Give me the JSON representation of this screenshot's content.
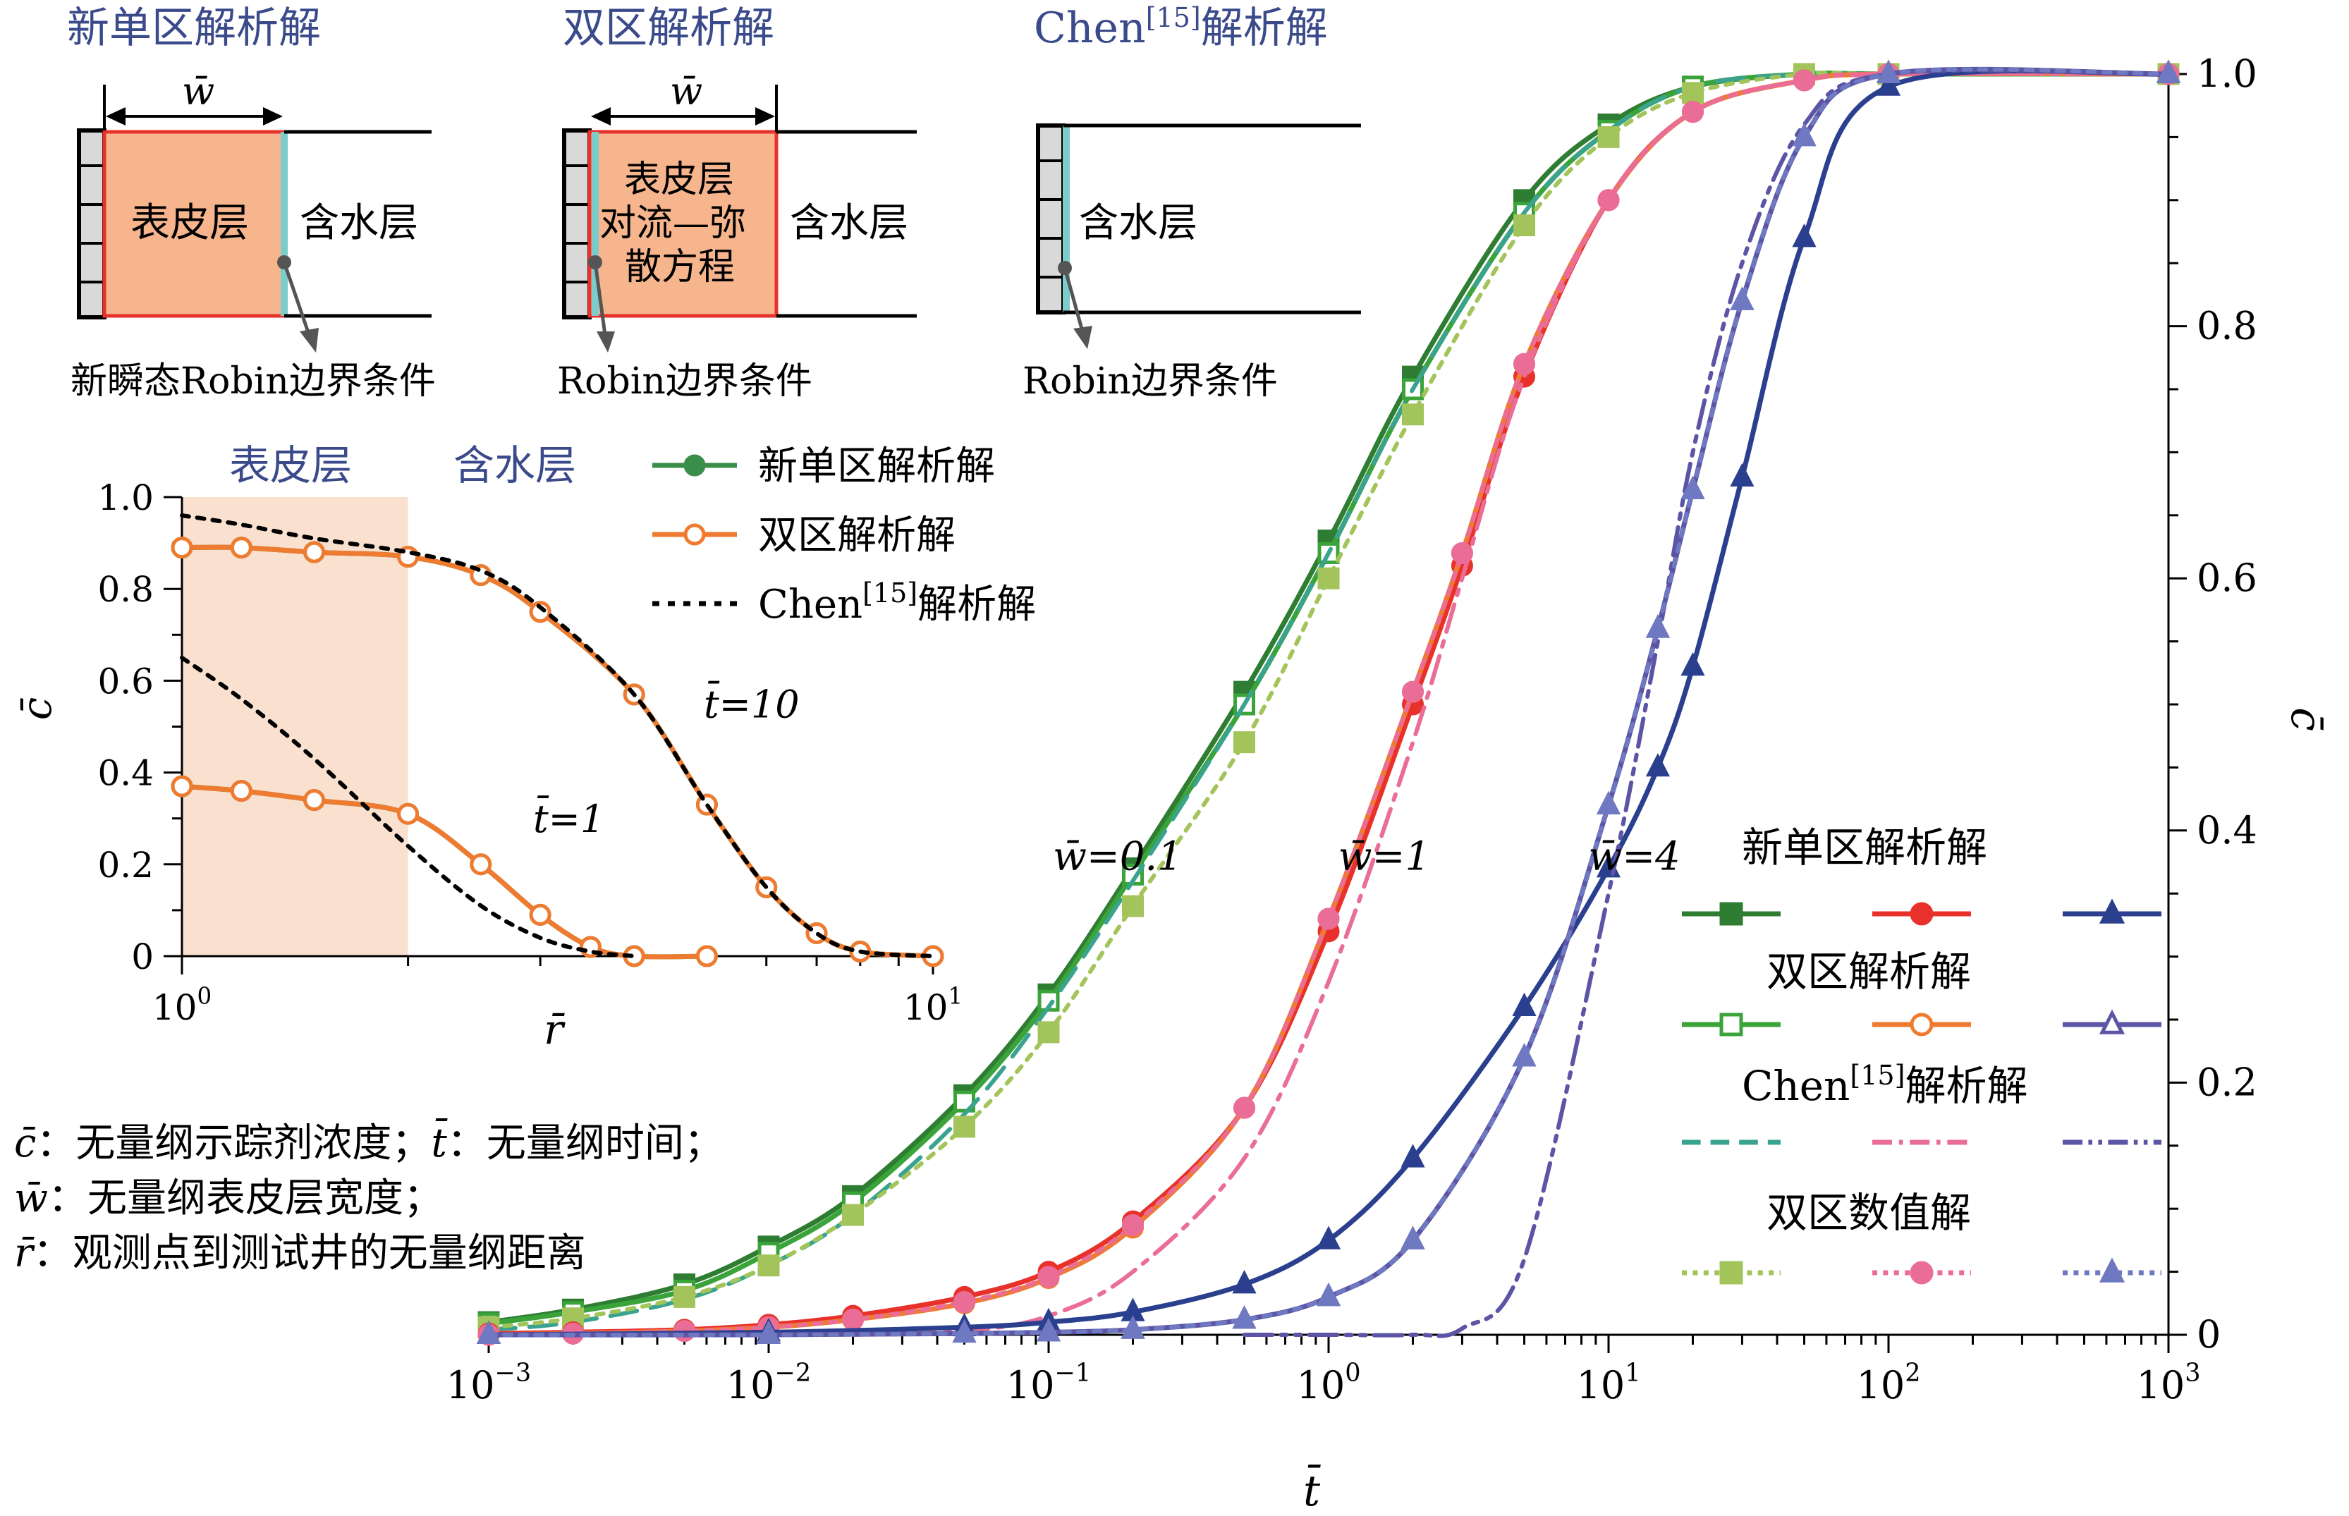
{
  "schematics": {
    "new_single": {
      "title": "新单区解析解",
      "width_symbol": "w̄",
      "skin_label": "表皮层",
      "aquifer_label": "含水层",
      "boundary_label": "新瞬态Robin边界条件"
    },
    "two_zone": {
      "title": "双区解析解",
      "width_symbol": "w̄",
      "skin_label_lines": [
        "表皮层",
        "对流—弥",
        "散方程"
      ],
      "aquifer_label": "含水层",
      "boundary_label": "Robin边界条件"
    },
    "chen": {
      "title_main": "Chen",
      "title_ref": "[15]",
      "title_rest": "解析解",
      "aquifer_label": "含水层",
      "boundary_label": "Robin边界条件"
    }
  },
  "main_legend": {
    "groups": [
      {
        "title": "新单区解析解"
      },
      {
        "title": "双区解析解"
      },
      {
        "title_main": "Chen",
        "title_ref": "[15]",
        "title_rest": "解析解"
      },
      {
        "title": "双区数值解"
      }
    ]
  },
  "inset_legend": {
    "items": [
      {
        "label": "新单区解析解"
      },
      {
        "label": "双区解析解"
      },
      {
        "label_main": "Chen",
        "label_ref": "[15]",
        "label_rest": "解析解"
      }
    ]
  },
  "inset_zone_labels": {
    "skin": "表皮层",
    "aquifer": "含水层"
  },
  "notes": [
    {
      "sym": "c̄",
      "text": "：无量纲示踪剂浓度；",
      "sym2": "t̄",
      "text2": "：无量纲时间；"
    },
    {
      "sym": "w̄",
      "text": "：无量纲表皮层宽度；"
    },
    {
      "sym": "r̄",
      "text": "：观测点到测试井的无量纲距离"
    }
  ],
  "colors": {
    "green_dark": "#2e7d32",
    "green": "#3aa33a",
    "green_light": "#a2c45a",
    "red": "#e8312a",
    "orange": "#ee7b30",
    "pink": "#ea6d98",
    "blue": "#2b3f8f",
    "purple": "#5c55a5",
    "teal": "#3aa38f",
    "skin_fill": "#f6b58d",
    "well_line": "#7dcccc",
    "title_blue": "#3a4a8a"
  },
  "chart_data": [
    {
      "type": "line",
      "xlabel": "t̄",
      "ylabel": "c̄",
      "xscale": "log",
      "xlim": [
        0.001,
        1000
      ],
      "ylim": [
        0,
        1
      ],
      "x_tick_labels": [
        "10^-3",
        "10^-2",
        "10^-1",
        "10^0",
        "10^1",
        "10^2",
        "10^3"
      ],
      "y_tick_labels": [
        "0",
        "0.2",
        "0.4",
        "0.6",
        "0.8",
        "1.0"
      ],
      "y_axis_side": "right",
      "annotations": [
        "w̄=0.1",
        "w̄=1",
        "w̄=4"
      ],
      "series": [
        {
          "name": "新单区解析解",
          "group": "w̄=0.1",
          "style": "solid",
          "marker": "filled-square",
          "color": "#2e7d32",
          "x": [
            0.001,
            0.002,
            0.005,
            0.01,
            0.02,
            0.05,
            0.1,
            0.2,
            0.5,
            1,
            2,
            5,
            10,
            20,
            50,
            100,
            1000
          ],
          "y": [
            0.01,
            0.02,
            0.04,
            0.07,
            0.11,
            0.19,
            0.27,
            0.37,
            0.51,
            0.63,
            0.76,
            0.9,
            0.96,
            0.99,
            1.0,
            1.0,
            1.0
          ]
        },
        {
          "name": "双区解析解",
          "group": "w̄=0.1",
          "style": "solid",
          "marker": "open-square",
          "color": "#3aa33a",
          "x": [
            0.001,
            0.002,
            0.005,
            0.01,
            0.02,
            0.05,
            0.1,
            0.2,
            0.5,
            1,
            2,
            5,
            10,
            20,
            50,
            100,
            1000
          ],
          "y": [
            0.009,
            0.018,
            0.035,
            0.065,
            0.105,
            0.185,
            0.265,
            0.365,
            0.5,
            0.62,
            0.75,
            0.89,
            0.955,
            0.99,
            1.0,
            1.0,
            1.0
          ]
        },
        {
          "name": "Chen[15]解析解",
          "group": "w̄=0.1",
          "style": "dash",
          "marker": "none",
          "color": "#3aa38f",
          "x": [
            0.001,
            0.002,
            0.005,
            0.01,
            0.02,
            0.05,
            0.1,
            0.2,
            0.5,
            1,
            2,
            5,
            10,
            20,
            50,
            100,
            1000
          ],
          "y": [
            0.004,
            0.01,
            0.028,
            0.055,
            0.095,
            0.175,
            0.26,
            0.36,
            0.5,
            0.62,
            0.75,
            0.89,
            0.955,
            0.99,
            1.0,
            1.0,
            1.0
          ]
        },
        {
          "name": "双区数值解",
          "group": "w̄=0.1",
          "style": "dot",
          "marker": "filled-square",
          "color": "#a2c45a",
          "x": [
            0.001,
            0.002,
            0.005,
            0.01,
            0.02,
            0.05,
            0.1,
            0.2,
            0.5,
            1,
            2,
            5,
            10,
            20,
            50,
            100,
            1000
          ],
          "y": [
            0.006,
            0.013,
            0.03,
            0.055,
            0.095,
            0.165,
            0.24,
            0.34,
            0.47,
            0.6,
            0.73,
            0.88,
            0.95,
            0.985,
            1.0,
            1.0,
            1.0
          ]
        },
        {
          "name": "新单区解析解",
          "group": "w̄=1",
          "style": "solid",
          "marker": "filled-circle",
          "color": "#e8312a",
          "x": [
            0.001,
            0.002,
            0.005,
            0.01,
            0.02,
            0.05,
            0.1,
            0.2,
            0.5,
            1,
            2,
            3,
            5,
            10,
            20,
            50,
            100,
            1000
          ],
          "y": [
            0.001,
            0.002,
            0.004,
            0.008,
            0.015,
            0.03,
            0.05,
            0.09,
            0.18,
            0.32,
            0.5,
            0.61,
            0.76,
            0.9,
            0.97,
            0.995,
            1.0,
            1.0
          ]
        },
        {
          "name": "双区解析解",
          "group": "w̄=1",
          "style": "solid",
          "marker": "open-circle",
          "color": "#ee7b30",
          "x": [
            0.001,
            0.002,
            0.005,
            0.01,
            0.02,
            0.05,
            0.1,
            0.2,
            0.5,
            1,
            2,
            3,
            5,
            10,
            20,
            50,
            100,
            1000
          ],
          "y": [
            0.0,
            0.001,
            0.003,
            0.006,
            0.012,
            0.025,
            0.045,
            0.085,
            0.18,
            0.33,
            0.51,
            0.62,
            0.77,
            0.9,
            0.97,
            0.995,
            1.0,
            1.0
          ]
        },
        {
          "name": "Chen[15]解析解",
          "group": "w̄=1",
          "style": "dash-dot",
          "marker": "none",
          "color": "#ea6d98",
          "x": [
            0.02,
            0.05,
            0.1,
            0.2,
            0.5,
            1,
            2,
            3,
            5,
            10,
            20,
            50,
            100,
            1000
          ],
          "y": [
            0.0,
            0.003,
            0.015,
            0.05,
            0.14,
            0.28,
            0.47,
            0.6,
            0.76,
            0.9,
            0.97,
            0.995,
            1.0,
            1.0
          ]
        },
        {
          "name": "双区数值解",
          "group": "w̄=1",
          "style": "dot",
          "marker": "filled-circle",
          "color": "#ea6d98",
          "x": [
            0.001,
            0.002,
            0.005,
            0.01,
            0.02,
            0.05,
            0.1,
            0.2,
            0.5,
            1,
            2,
            3,
            5,
            10,
            20,
            50,
            100,
            1000
          ],
          "y": [
            0.0,
            0.001,
            0.003,
            0.006,
            0.012,
            0.026,
            0.046,
            0.087,
            0.18,
            0.33,
            0.51,
            0.62,
            0.77,
            0.9,
            0.97,
            0.995,
            1.0,
            1.0
          ]
        },
        {
          "name": "新单区解析解",
          "group": "w̄=4",
          "style": "solid",
          "marker": "filled-triangle",
          "color": "#2b3f8f",
          "x": [
            0.001,
            0.01,
            0.05,
            0.1,
            0.2,
            0.5,
            1,
            2,
            5,
            10,
            15,
            20,
            30,
            50,
            100,
            1000
          ],
          "y": [
            0.0,
            0.002,
            0.006,
            0.01,
            0.018,
            0.04,
            0.075,
            0.14,
            0.26,
            0.37,
            0.45,
            0.53,
            0.68,
            0.87,
            0.99,
            1.0
          ]
        },
        {
          "name": "双区解析解",
          "group": "w̄=4",
          "style": "solid",
          "marker": "open-triangle",
          "color": "#5c55a5",
          "x": [
            0.001,
            0.01,
            0.05,
            0.1,
            0.2,
            0.5,
            1,
            2,
            5,
            10,
            15,
            20,
            30,
            50,
            100,
            1000
          ],
          "y": [
            0.0,
            0.0,
            0.001,
            0.002,
            0.004,
            0.012,
            0.03,
            0.075,
            0.22,
            0.42,
            0.56,
            0.67,
            0.82,
            0.95,
            1.0,
            1.0
          ]
        },
        {
          "name": "Chen[15]解析解",
          "group": "w̄=4",
          "style": "dash-dot-dot",
          "marker": "none",
          "color": "#5c55a5",
          "x": [
            0.5,
            1,
            2,
            3,
            5,
            10,
            15,
            20,
            30,
            50,
            100,
            1000
          ],
          "y": [
            0.0,
            0.0,
            0.0,
            0.005,
            0.06,
            0.35,
            0.55,
            0.7,
            0.85,
            0.96,
            1.0,
            1.0
          ]
        },
        {
          "name": "双区数值解",
          "group": "w̄=4",
          "style": "dot",
          "marker": "filled-triangle",
          "color": "#6f79c2",
          "x": [
            0.001,
            0.01,
            0.05,
            0.1,
            0.2,
            0.5,
            1,
            2,
            5,
            10,
            15,
            20,
            30,
            50,
            100,
            1000
          ],
          "y": [
            0.0,
            0.0,
            0.001,
            0.002,
            0.004,
            0.012,
            0.03,
            0.075,
            0.22,
            0.42,
            0.56,
            0.67,
            0.82,
            0.95,
            1.0,
            1.0
          ]
        }
      ]
    },
    {
      "type": "line",
      "xlabel": "r̄",
      "ylabel": "c̄",
      "xscale": "log",
      "xlim": [
        1,
        10
      ],
      "ylim": [
        0,
        1
      ],
      "x_tick_labels": [
        "10^0",
        "10^1"
      ],
      "y_tick_labels": [
        "0",
        "0.2",
        "0.4",
        "0.6",
        "0.8",
        "1.0"
      ],
      "shaded_x_range": [
        1,
        2
      ],
      "annotations": [
        "t̄=10",
        "t̄=1"
      ],
      "series": [
        {
          "name": "新单区解析解",
          "group": "t̄=10",
          "style": "solid",
          "marker": "filled-circle",
          "color": "#3b8d4a",
          "x": [
            1,
            1.2,
            1.5,
            2,
            2.5,
            3,
            4,
            5,
            6,
            7,
            8,
            10
          ],
          "y": [
            0.89,
            0.89,
            0.88,
            0.87,
            0.83,
            0.75,
            0.57,
            0.33,
            0.15,
            0.05,
            0.01,
            0.0
          ]
        },
        {
          "name": "双区解析解",
          "group": "t̄=10",
          "style": "solid",
          "marker": "open-circle",
          "color": "#ee7b30",
          "x": [
            1,
            1.2,
            1.5,
            2,
            2.5,
            3,
            4,
            5,
            6,
            7,
            8,
            10
          ],
          "y": [
            0.89,
            0.89,
            0.88,
            0.87,
            0.83,
            0.75,
            0.57,
            0.33,
            0.15,
            0.05,
            0.01,
            0.0
          ]
        },
        {
          "name": "Chen[15]解析解",
          "group": "t̄=10",
          "style": "dot",
          "marker": "none",
          "color": "#000000",
          "x": [
            1,
            1.2,
            1.5,
            2,
            2.5,
            3,
            4,
            5,
            6,
            7,
            8,
            10
          ],
          "y": [
            0.96,
            0.94,
            0.91,
            0.88,
            0.84,
            0.76,
            0.57,
            0.33,
            0.15,
            0.05,
            0.01,
            0.0
          ]
        },
        {
          "name": "新单区解析解",
          "group": "t̄=1",
          "style": "solid",
          "marker": "filled-circle",
          "color": "#3b8d4a",
          "x": [
            1,
            1.2,
            1.5,
            2,
            2.5,
            3,
            3.5,
            4,
            5
          ],
          "y": [
            0.37,
            0.36,
            0.34,
            0.31,
            0.2,
            0.09,
            0.02,
            0.0,
            0.0
          ]
        },
        {
          "name": "双区解析解",
          "group": "t̄=1",
          "style": "solid",
          "marker": "open-circle",
          "color": "#ee7b30",
          "x": [
            1,
            1.2,
            1.5,
            2,
            2.5,
            3,
            3.5,
            4,
            5
          ],
          "y": [
            0.37,
            0.36,
            0.34,
            0.31,
            0.2,
            0.09,
            0.02,
            0.0,
            0.0
          ]
        },
        {
          "name": "Chen[15]解析解",
          "group": "t̄=1",
          "style": "dot",
          "marker": "none",
          "color": "#000000",
          "x": [
            1,
            1.2,
            1.5,
            2,
            2.5,
            3,
            3.5,
            4
          ],
          "y": [
            0.65,
            0.56,
            0.43,
            0.24,
            0.11,
            0.04,
            0.01,
            0.0
          ]
        }
      ]
    }
  ]
}
